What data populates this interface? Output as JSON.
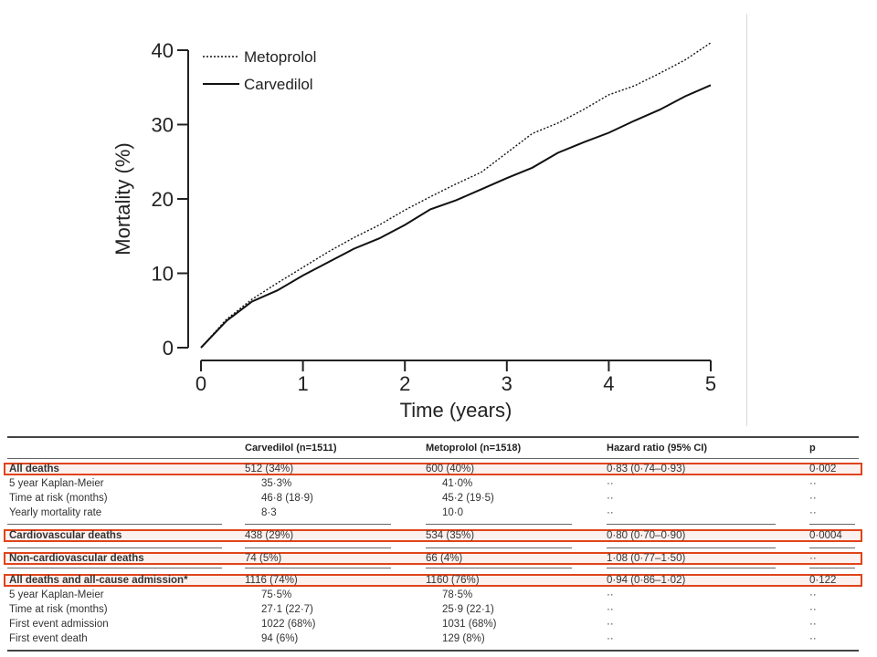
{
  "chart_data": {
    "type": "line",
    "xlabel": "Time (years)",
    "ylabel": "Mortality (%)",
    "xlim": [
      0,
      5
    ],
    "ylim": [
      0,
      40
    ],
    "xticks": [
      "0",
      "1",
      "2",
      "3",
      "4",
      "5"
    ],
    "yticks": [
      "0",
      "10",
      "20",
      "30",
      "40"
    ],
    "legend_position": "top-left",
    "series": [
      {
        "name": "Metoprolol",
        "style": "dotted",
        "x": [
          0,
          0.25,
          0.5,
          0.75,
          1.0,
          1.25,
          1.5,
          1.75,
          2.0,
          2.25,
          2.5,
          2.75,
          3.0,
          3.25,
          3.5,
          3.75,
          4.0,
          4.25,
          4.5,
          4.75,
          5.0
        ],
        "y": [
          0,
          3.8,
          6.5,
          8.7,
          10.8,
          12.9,
          14.8,
          16.5,
          18.5,
          20.3,
          22.0,
          23.6,
          26.2,
          28.8,
          30.2,
          32.0,
          34.0,
          35.2,
          36.9,
          38.7,
          41.0
        ]
      },
      {
        "name": "Carvedilol",
        "style": "solid",
        "x": [
          0,
          0.25,
          0.5,
          0.75,
          1.0,
          1.25,
          1.5,
          1.75,
          2.0,
          2.25,
          2.5,
          2.75,
          3.0,
          3.25,
          3.5,
          3.75,
          4.0,
          4.25,
          4.5,
          4.75,
          5.0
        ],
        "y": [
          0,
          3.6,
          6.2,
          7.7,
          9.7,
          11.5,
          13.3,
          14.7,
          16.5,
          18.6,
          19.8,
          21.3,
          22.8,
          24.2,
          26.2,
          27.6,
          28.9,
          30.5,
          32.0,
          33.8,
          35.3
        ]
      }
    ]
  },
  "table": {
    "headers": [
      "",
      "Carvedilol (n=1511)",
      "Metoprolol (n=1518)",
      "Hazard ratio (95% CI)",
      "p"
    ],
    "rows": [
      {
        "label": "All deaths",
        "carv": "512 (34%)",
        "meto": "600 (40%)",
        "hr": "0·83 (0·74–0·93)",
        "p": "0·002",
        "bold": true,
        "highlight": true
      },
      {
        "label": "5 year Kaplan-Meier",
        "carv": "35·3%",
        "meto": "41·0%",
        "hr": "··",
        "p": "··"
      },
      {
        "label": "Time at risk (months)",
        "carv": "46·8 (18·9)",
        "meto": "45·2 (19·5)",
        "hr": "··",
        "p": "··"
      },
      {
        "label": "Yearly mortality rate",
        "carv": "8·3",
        "meto": "10·0",
        "hr": "··",
        "p": "··"
      },
      {
        "label": "Cardiovascular deaths",
        "carv": "438 (29%)",
        "meto": "534 (35%)",
        "hr": "0·80 (0·70–0·90)",
        "p": "0·0004",
        "bold": true,
        "highlight": true
      },
      {
        "label": "Non-cardiovascular deaths",
        "carv": "74 (5%)",
        "meto": "66 (4%)",
        "hr": "1·08 (0·77–1·50)",
        "p": "··",
        "bold": true,
        "highlight": true
      },
      {
        "label": "All deaths and all-cause admission*",
        "carv": "1116 (74%)",
        "meto": "1160 (76%)",
        "hr": "0·94 (0·86–1·02)",
        "p": "0·122",
        "bold": true,
        "highlight": true
      },
      {
        "label": "5 year Kaplan-Meier",
        "carv": "75·5%",
        "meto": "78·5%",
        "hr": "··",
        "p": "··"
      },
      {
        "label": "Time at risk (months)",
        "carv": "27·1 (22·7)",
        "meto": "25·9 (22·1)",
        "hr": "··",
        "p": "··"
      },
      {
        "label": "First event admission",
        "carv": "1022 (68%)",
        "meto": "1031 (68%)",
        "hr": "··",
        "p": "··"
      },
      {
        "label": "First event death",
        "carv": "94 (6%)",
        "meto": "129 (8%)",
        "hr": "··",
        "p": "··"
      }
    ]
  },
  "colors": {
    "highlight_border": "#e0441a",
    "line": "#111111"
  }
}
